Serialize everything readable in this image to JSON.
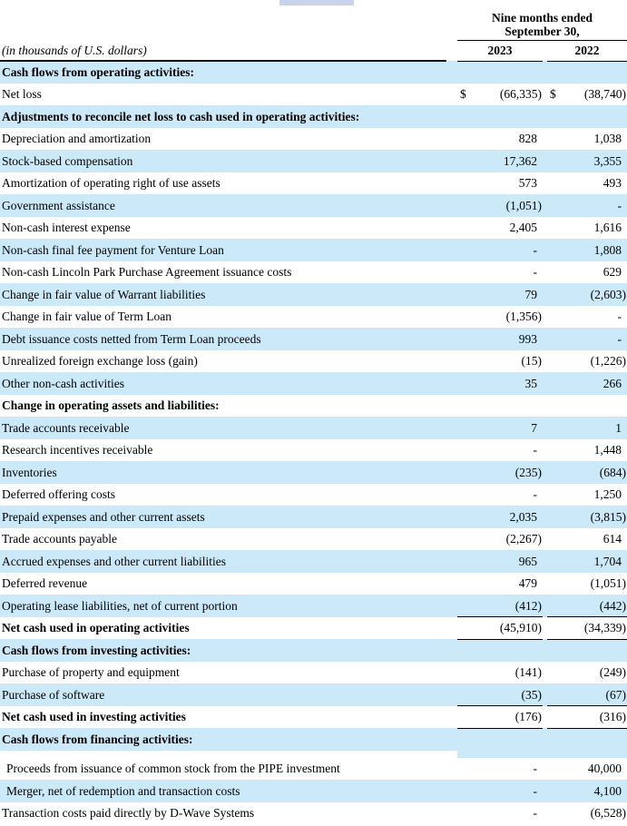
{
  "document": {
    "note": "(in thousands of U.S. dollars)",
    "period_header_line1": "Nine months ended",
    "period_header_line2": "September 30,",
    "year_columns": [
      "2023",
      "2022"
    ]
  },
  "colors": {
    "row_highlight": "#cbe9f9",
    "top_fragment": "#c6d3ea",
    "rule": "#000000"
  },
  "rows": [
    {
      "label": "Cash flows from operating activities:",
      "bold": true,
      "bg": "blue",
      "v2023": "",
      "v2022": ""
    },
    {
      "label": "Net loss",
      "bg": "white",
      "dollar": true,
      "v2023": "(66,335)",
      "v2022": "(38,740)"
    },
    {
      "label": "Adjustments to reconcile net loss to cash used in operating activities:",
      "bold": true,
      "bg": "blue",
      "v2023": "",
      "v2022": ""
    },
    {
      "label": "Depreciation and amortization",
      "bg": "white",
      "v2023": "828",
      "v2022": "1,038"
    },
    {
      "label": "Stock-based compensation",
      "bg": "blue",
      "v2023": "17,362",
      "v2022": "3,355"
    },
    {
      "label": "Amortization of operating right of use assets",
      "bg": "white",
      "v2023": "573",
      "v2022": "493"
    },
    {
      "label": "Government assistance",
      "bg": "blue",
      "v2023": "(1,051)",
      "v2022": "-"
    },
    {
      "label": "Non-cash interest expense",
      "bg": "white",
      "v2023": "2,405",
      "v2022": "1,616"
    },
    {
      "label": "Non-cash final fee payment for Venture Loan",
      "bg": "blue",
      "v2023": "-",
      "v2022": "1,808"
    },
    {
      "label": "Non-cash Lincoln Park Purchase Agreement issuance costs",
      "bg": "white",
      "v2023": "-",
      "v2022": "629"
    },
    {
      "label": "Change in fair value of Warrant liabilities",
      "bg": "blue",
      "v2023": "79",
      "v2022": "(2,603)"
    },
    {
      "label": "Change in fair value of Term Loan",
      "bg": "white",
      "v2023": "(1,356)",
      "v2022": "-"
    },
    {
      "label": "Debt issuance costs netted from Term Loan proceeds",
      "bg": "blue",
      "v2023": "993",
      "v2022": "-"
    },
    {
      "label": "Unrealized foreign exchange loss (gain)",
      "bg": "white",
      "v2023": "(15)",
      "v2022": "(1,226)"
    },
    {
      "label": "Other non-cash activities",
      "bg": "blue",
      "v2023": "35",
      "v2022": "266"
    },
    {
      "label": "Change in operating assets and liabilities:",
      "bold": true,
      "bg": "white",
      "v2023": "",
      "v2022": ""
    },
    {
      "label": "Trade accounts receivable",
      "bg": "blue",
      "v2023": "7",
      "v2022": "1"
    },
    {
      "label": "Research incentives receivable",
      "bg": "white",
      "v2023": "-",
      "v2022": "1,448"
    },
    {
      "label": "Inventories",
      "bg": "blue",
      "v2023": "(235)",
      "v2022": "(684)"
    },
    {
      "label": "Deferred offering costs",
      "bg": "white",
      "v2023": "-",
      "v2022": "1,250"
    },
    {
      "label": "Prepaid expenses and other current assets",
      "bg": "blue",
      "v2023": "2,035",
      "v2022": "(3,815)"
    },
    {
      "label": "Trade accounts payable",
      "bg": "white",
      "v2023": "(2,267)",
      "v2022": "614"
    },
    {
      "label": "Accrued expenses and other current liabilities",
      "bg": "blue",
      "v2023": "965",
      "v2022": "1,704"
    },
    {
      "label": "Deferred revenue",
      "bg": "white",
      "v2023": "479",
      "v2022": "(1,051)"
    },
    {
      "label": "Operating lease liabilities, net of current portion",
      "bg": "blue",
      "v2023": "(412)",
      "v2022": "(442)",
      "underline_nums": true
    },
    {
      "label": "Net cash used in operating activities",
      "bold": true,
      "bg": "white",
      "v2023": "(45,910)",
      "v2022": "(34,339)",
      "underline_nums": true
    },
    {
      "label": "Cash flows from investing activities:",
      "bold": true,
      "bg": "blue",
      "v2023": "",
      "v2022": ""
    },
    {
      "label": "Purchase of property and equipment",
      "bg": "white",
      "v2023": "(141)",
      "v2022": "(249)"
    },
    {
      "label": "Purchase of software",
      "bg": "blue",
      "v2023": "(35)",
      "v2022": "(67)",
      "underline_nums": true
    },
    {
      "label": "Net cash used in investing activities",
      "bold": true,
      "bg": "white",
      "v2023": "(176)",
      "v2022": "(316)",
      "underline_nums": true
    },
    {
      "label": "Cash flows from financing activities:",
      "bold": true,
      "bg": "blue",
      "v2023": "",
      "v2022": "",
      "spacer_after": true
    },
    {
      "label": "Proceeds from issuance of common stock from the PIPE investment",
      "bg": "white",
      "indent": true,
      "v2023": "-",
      "v2022": "40,000"
    },
    {
      "label": "Merger, net of redemption and transaction costs",
      "bg": "blue",
      "indent": true,
      "v2023": "-",
      "v2022": "4,100"
    },
    {
      "label": "Transaction costs paid directly by D-Wave Systems",
      "bg": "white",
      "v2023": "-",
      "v2022": "(6,528)"
    }
  ]
}
